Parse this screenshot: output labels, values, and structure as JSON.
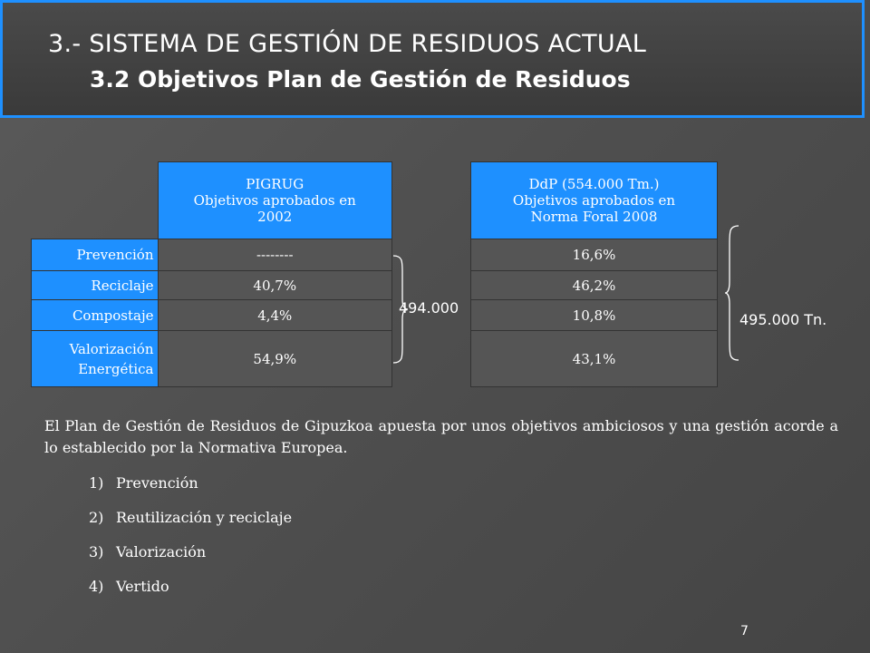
{
  "title": {
    "main": "3.- SISTEMA DE GESTIÓN DE RESIDUOS ACTUAL",
    "sub": "3.2 Objetivos Plan de Gestión de Residuos"
  },
  "table_left": {
    "header_lines": [
      "PIGRUG",
      "Objetivos aprobados en",
      "2002"
    ],
    "rows": [
      {
        "label": "Prevención",
        "value": "--------"
      },
      {
        "label": "Reciclaje",
        "value": "40,7%"
      },
      {
        "label": "Compostaje",
        "value": "4,4%"
      },
      {
        "label_lines": [
          "Valorización",
          "Energética"
        ],
        "value": "54,9%"
      }
    ],
    "total": "494.000"
  },
  "table_right": {
    "header_lines": [
      "DdP (554.000 Tm.)",
      "Objetivos aprobados en",
      "Norma Foral 2008"
    ],
    "values": [
      "16,6%",
      "46,2%",
      "10,8%",
      "43,1%"
    ],
    "total": "495.000 Tn."
  },
  "paragraph": "El Plan de Gestión de Residuos de Gipuzkoa apuesta por unos objetivos ambiciosos y una gestión acorde a lo establecido por la Normativa Europea.",
  "list": [
    {
      "num": "1)",
      "text": "Prevención"
    },
    {
      "num": "2)",
      "text": "Reutilización y reciclaje"
    },
    {
      "num": "3)",
      "text": "Valorización"
    },
    {
      "num": "4)",
      "text": "Vertido"
    }
  ],
  "page_number": "7",
  "colors": {
    "accent": "#1e90ff",
    "cell": "#555555"
  }
}
